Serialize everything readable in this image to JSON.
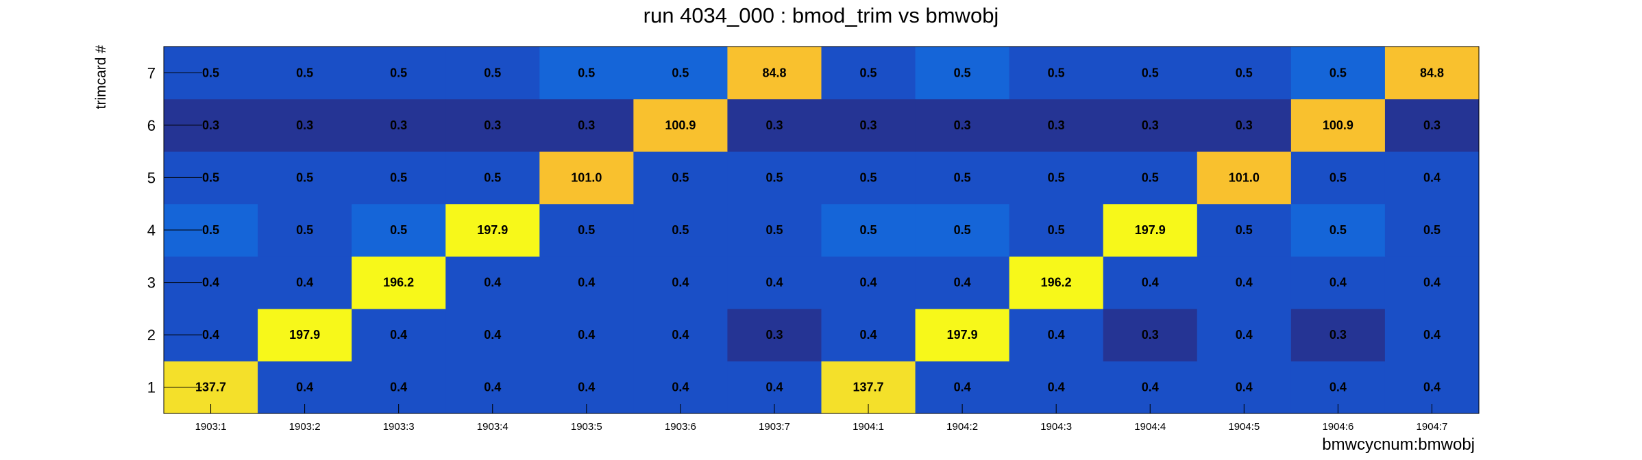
{
  "chart_data": {
    "type": "heatmap",
    "title": "run 4034_000 : bmod_trim vs bmwobj",
    "xlabel": "bmwcycnum:bmwobj",
    "ylabel": "trimcard #",
    "x_categories": [
      "1903:1",
      "1903:2",
      "1903:3",
      "1903:4",
      "1903:5",
      "1903:6",
      "1903:7",
      "1904:1",
      "1904:2",
      "1904:3",
      "1904:4",
      "1904:5",
      "1904:6",
      "1904:7"
    ],
    "y_categories": [
      "1",
      "2",
      "3",
      "4",
      "5",
      "6",
      "7"
    ],
    "values": [
      [
        137.7,
        0.4,
        0.4,
        0.4,
        0.4,
        0.4,
        0.4,
        137.7,
        0.4,
        0.4,
        0.4,
        0.4,
        0.4,
        0.4
      ],
      [
        0.4,
        197.9,
        0.4,
        0.4,
        0.4,
        0.4,
        0.3,
        0.4,
        197.9,
        0.4,
        0.3,
        0.4,
        0.3,
        0.4
      ],
      [
        0.4,
        0.4,
        196.2,
        0.4,
        0.4,
        0.4,
        0.4,
        0.4,
        0.4,
        196.2,
        0.4,
        0.4,
        0.4,
        0.4
      ],
      [
        0.5,
        0.5,
        0.5,
        197.9,
        0.5,
        0.5,
        0.5,
        0.5,
        0.5,
        0.5,
        197.9,
        0.5,
        0.5,
        0.5
      ],
      [
        0.5,
        0.5,
        0.5,
        0.5,
        101.0,
        0.5,
        0.5,
        0.5,
        0.5,
        0.5,
        0.5,
        101.0,
        0.5,
        0.4
      ],
      [
        0.3,
        0.3,
        0.3,
        0.3,
        0.3,
        100.9,
        0.3,
        0.3,
        0.3,
        0.3,
        0.3,
        0.3,
        100.9,
        0.3
      ],
      [
        0.5,
        0.5,
        0.5,
        0.5,
        0.5,
        0.5,
        84.8,
        0.5,
        0.5,
        0.5,
        0.5,
        0.5,
        0.5,
        84.8
      ]
    ],
    "labels": [
      [
        "137.7",
        "0.4",
        "0.4",
        "0.4",
        "0.4",
        "0.4",
        "0.4",
        "137.7",
        "0.4",
        "0.4",
        "0.4",
        "0.4",
        "0.4",
        "0.4"
      ],
      [
        "0.4",
        "197.9",
        "0.4",
        "0.4",
        "0.4",
        "0.4",
        "0.3",
        "0.4",
        "197.9",
        "0.4",
        "0.3",
        "0.4",
        "0.3",
        "0.4"
      ],
      [
        "0.4",
        "0.4",
        "196.2",
        "0.4",
        "0.4",
        "0.4",
        "0.4",
        "0.4",
        "0.4",
        "196.2",
        "0.4",
        "0.4",
        "0.4",
        "0.4"
      ],
      [
        "0.5",
        "0.5",
        "0.5",
        "197.9",
        "0.5",
        "0.5",
        "0.5",
        "0.5",
        "0.5",
        "0.5",
        "197.9",
        "0.5",
        "0.5",
        "0.5"
      ],
      [
        "0.5",
        "0.5",
        "0.5",
        "0.5",
        "101.0",
        "0.5",
        "0.5",
        "0.5",
        "0.5",
        "0.5",
        "0.5",
        "101.0",
        "0.5",
        "0.4"
      ],
      [
        "0.3",
        "0.3",
        "0.3",
        "0.3",
        "0.3",
        "100.9",
        "0.3",
        "0.3",
        "0.3",
        "0.3",
        "0.3",
        "0.3",
        "100.9",
        "0.3"
      ],
      [
        "0.5",
        "0.5",
        "0.5",
        "0.5",
        "0.5",
        "0.5",
        "84.8",
        "0.5",
        "0.5",
        "0.5",
        "0.5",
        "0.5",
        "0.5",
        "84.8"
      ]
    ],
    "colors": {
      "low": "#253494",
      "mid_low": "#1a4fc6",
      "mid": "#1565d8",
      "high_mid": "#f9c12e",
      "high": "#f4e02a",
      "max": "#f7f81a"
    },
    "grid": false
  }
}
